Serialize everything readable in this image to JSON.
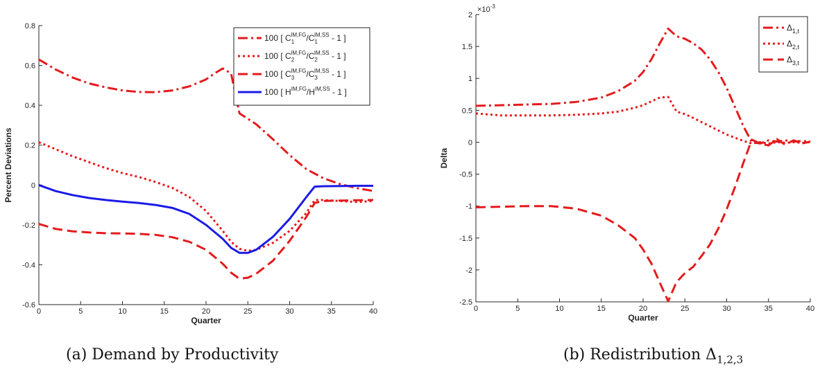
{
  "captions": {
    "a": "(a) Demand by Productivity",
    "b": "(b) Redistribution Δ",
    "b_sub": "1,2,3"
  },
  "colors": {
    "red": "#e41a1c",
    "blue": "#1a1ae6",
    "axis": "#262626"
  },
  "chart_data": [
    {
      "type": "line",
      "xlabel": "Quarter",
      "ylabel": "Percent Deviations",
      "xlim": [
        0,
        40
      ],
      "ylim": [
        -0.6,
        0.8
      ],
      "xticks": [
        0,
        5,
        10,
        15,
        20,
        25,
        30,
        35,
        40
      ],
      "yticks": [
        -0.6,
        -0.4,
        -0.2,
        0,
        0.2,
        0.4,
        0.6,
        0.8
      ],
      "ytick_labels": [
        "-0.6",
        "-0.4",
        "-0.2",
        "0",
        "0.2",
        "0.4",
        "0.6",
        "0.8"
      ],
      "grid": false,
      "legend_position": "top-right",
      "series": [
        {
          "name": "100 [ C1^{IM,FG}/C1^{IM,SS} - 1 ]",
          "legend": {
            "pre": "100 [ C",
            "a_sub": "1",
            "a_sup": "IM,FG",
            "mid": "/C",
            "b_sub": "1",
            "b_sup": "IM,SS",
            "post": " - 1 ]"
          },
          "style": "dashdot",
          "color": "#e41a1c",
          "x": [
            0,
            2,
            4,
            6,
            8,
            10,
            12,
            14,
            16,
            18,
            20,
            21,
            22,
            23,
            24,
            26,
            28,
            30,
            32,
            34,
            36,
            38,
            40
          ],
          "y": [
            0.63,
            0.58,
            0.54,
            0.51,
            0.49,
            0.475,
            0.467,
            0.466,
            0.475,
            0.495,
            0.53,
            0.56,
            0.585,
            0.56,
            0.36,
            0.305,
            0.23,
            0.15,
            0.08,
            0.035,
            0.005,
            -0.015,
            -0.03
          ]
        },
        {
          "name": "100 [ C2^{IM,FG}/C2^{IM,SS} - 1 ]",
          "legend": {
            "pre": "100 [ C",
            "a_sub": "2",
            "a_sup": "IM,FG",
            "mid": "/C",
            "b_sub": "2",
            "b_sup": "IM,SS",
            "post": " - 1 ]"
          },
          "style": "dotted",
          "color": "#e41a1c",
          "x": [
            0,
            2,
            4,
            6,
            8,
            10,
            12,
            14,
            16,
            18,
            20,
            22,
            23,
            24,
            25,
            26,
            28,
            30,
            32,
            33,
            34,
            36,
            38,
            40
          ],
          "y": [
            0.215,
            0.18,
            0.145,
            0.115,
            0.085,
            0.06,
            0.04,
            0.015,
            -0.015,
            -0.06,
            -0.13,
            -0.23,
            -0.285,
            -0.32,
            -0.33,
            -0.325,
            -0.29,
            -0.23,
            -0.14,
            -0.075,
            -0.075,
            -0.08,
            -0.085,
            -0.08
          ]
        },
        {
          "name": "100 [ C3^{IM,FG}/C3^{IM,SS} - 1 ]",
          "legend": {
            "pre": "100 [ C",
            "a_sub": "3",
            "a_sup": "IM,FG",
            "mid": "/C",
            "b_sub": "3",
            "b_sup": "IM,SS",
            "post": " - 1 ]"
          },
          "style": "dashed",
          "color": "#e41a1c",
          "x": [
            0,
            2,
            4,
            6,
            8,
            10,
            12,
            14,
            16,
            18,
            20,
            22,
            23,
            24,
            25,
            26,
            28,
            30,
            32,
            33,
            34,
            36,
            38,
            40
          ],
          "y": [
            -0.195,
            -0.22,
            -0.232,
            -0.238,
            -0.242,
            -0.243,
            -0.245,
            -0.25,
            -0.262,
            -0.285,
            -0.325,
            -0.395,
            -0.44,
            -0.47,
            -0.465,
            -0.445,
            -0.38,
            -0.28,
            -0.16,
            -0.09,
            -0.08,
            -0.078,
            -0.076,
            -0.075
          ]
        },
        {
          "name": "100 [ H^{IM,FG}/H^{IM,SS} - 1 ]",
          "legend": {
            "pre": "100 [ H",
            "a_sub": "",
            "a_sup": "IM,FG",
            "mid": "/H",
            "b_sub": "",
            "b_sup": "IM,SS",
            "post": " - 1 ]"
          },
          "style": "solid",
          "color": "#1a1ae6",
          "x": [
            0,
            2,
            4,
            6,
            8,
            10,
            12,
            14,
            16,
            18,
            20,
            22,
            23,
            24,
            25,
            26,
            28,
            30,
            32,
            33,
            34,
            36,
            38,
            40
          ],
          "y": [
            0.0,
            -0.03,
            -0.05,
            -0.065,
            -0.075,
            -0.083,
            -0.09,
            -0.1,
            -0.115,
            -0.145,
            -0.2,
            -0.27,
            -0.315,
            -0.34,
            -0.34,
            -0.325,
            -0.26,
            -0.17,
            -0.06,
            -0.008,
            -0.006,
            -0.005,
            -0.004,
            -0.004
          ]
        }
      ]
    },
    {
      "type": "line",
      "xlabel": "Quarter",
      "ylabel": "Delta",
      "xlim": [
        0,
        40
      ],
      "ylim": [
        -2.5,
        2
      ],
      "y_scale_note": "×10",
      "y_scale_exp": "-3",
      "xticks": [
        0,
        5,
        10,
        15,
        20,
        25,
        30,
        35,
        40
      ],
      "yticks": [
        -2.5,
        -2,
        -1.5,
        -1,
        -0.5,
        0,
        0.5,
        1,
        1.5,
        2
      ],
      "ytick_labels": [
        "-2.5",
        "-2",
        "-1.5",
        "-1",
        "-0.5",
        "0",
        "0.5",
        "1",
        "1.5",
        "2"
      ],
      "grid": false,
      "legend_position": "top-right",
      "series": [
        {
          "name": "Δ_{1,t}",
          "legend": {
            "base": "Δ",
            "sub": "1,t"
          },
          "style": "dashdot",
          "color": "#e41a1c",
          "x": [
            0,
            3,
            6,
            9,
            12,
            15,
            17,
            19,
            20,
            21,
            22,
            23,
            24,
            25,
            26,
            27,
            28,
            29,
            30,
            31,
            32,
            33,
            34,
            35,
            36,
            37,
            38,
            39,
            40
          ],
          "y": [
            0.57,
            0.58,
            0.59,
            0.6,
            0.63,
            0.7,
            0.8,
            0.96,
            1.1,
            1.3,
            1.55,
            1.78,
            1.66,
            1.62,
            1.55,
            1.45,
            1.3,
            1.1,
            0.85,
            0.55,
            0.25,
            0.0,
            -0.02,
            0.03,
            0.01,
            0.03,
            0.01,
            0.02,
            0.01
          ]
        },
        {
          "name": "Δ_{2,t}",
          "legend": {
            "base": "Δ",
            "sub": "2,t"
          },
          "style": "dotted",
          "color": "#e41a1c",
          "x": [
            0,
            3,
            6,
            9,
            12,
            15,
            17,
            19,
            20,
            21,
            22,
            23,
            24,
            25,
            26,
            28,
            30,
            32,
            33,
            34,
            35,
            36,
            37,
            38,
            39,
            40
          ],
          "y": [
            0.45,
            0.42,
            0.42,
            0.42,
            0.43,
            0.45,
            0.48,
            0.54,
            0.58,
            0.64,
            0.7,
            0.71,
            0.48,
            0.44,
            0.38,
            0.25,
            0.12,
            0.02,
            -0.02,
            0.0,
            -0.02,
            0.0,
            -0.01,
            0.0,
            -0.01,
            0.0
          ]
        },
        {
          "name": "Δ_{3,t}",
          "legend": {
            "base": "Δ",
            "sub": "3,t"
          },
          "style": "dashed",
          "color": "#e41a1c",
          "x": [
            0,
            3,
            6,
            9,
            12,
            15,
            17,
            19,
            20,
            21,
            22,
            23,
            24,
            25,
            26,
            27,
            28,
            29,
            30,
            31,
            32,
            33,
            34,
            35,
            36,
            37,
            38,
            39,
            40
          ],
          "y": [
            -1.02,
            -1.01,
            -1.0,
            -1.0,
            -1.04,
            -1.15,
            -1.3,
            -1.5,
            -1.68,
            -1.9,
            -2.2,
            -2.49,
            -2.19,
            -2.05,
            -1.95,
            -1.78,
            -1.6,
            -1.35,
            -1.05,
            -0.7,
            -0.32,
            0.04,
            -0.02,
            -0.05,
            0.05,
            -0.04,
            0.03,
            -0.02,
            0.01
          ]
        }
      ]
    }
  ]
}
